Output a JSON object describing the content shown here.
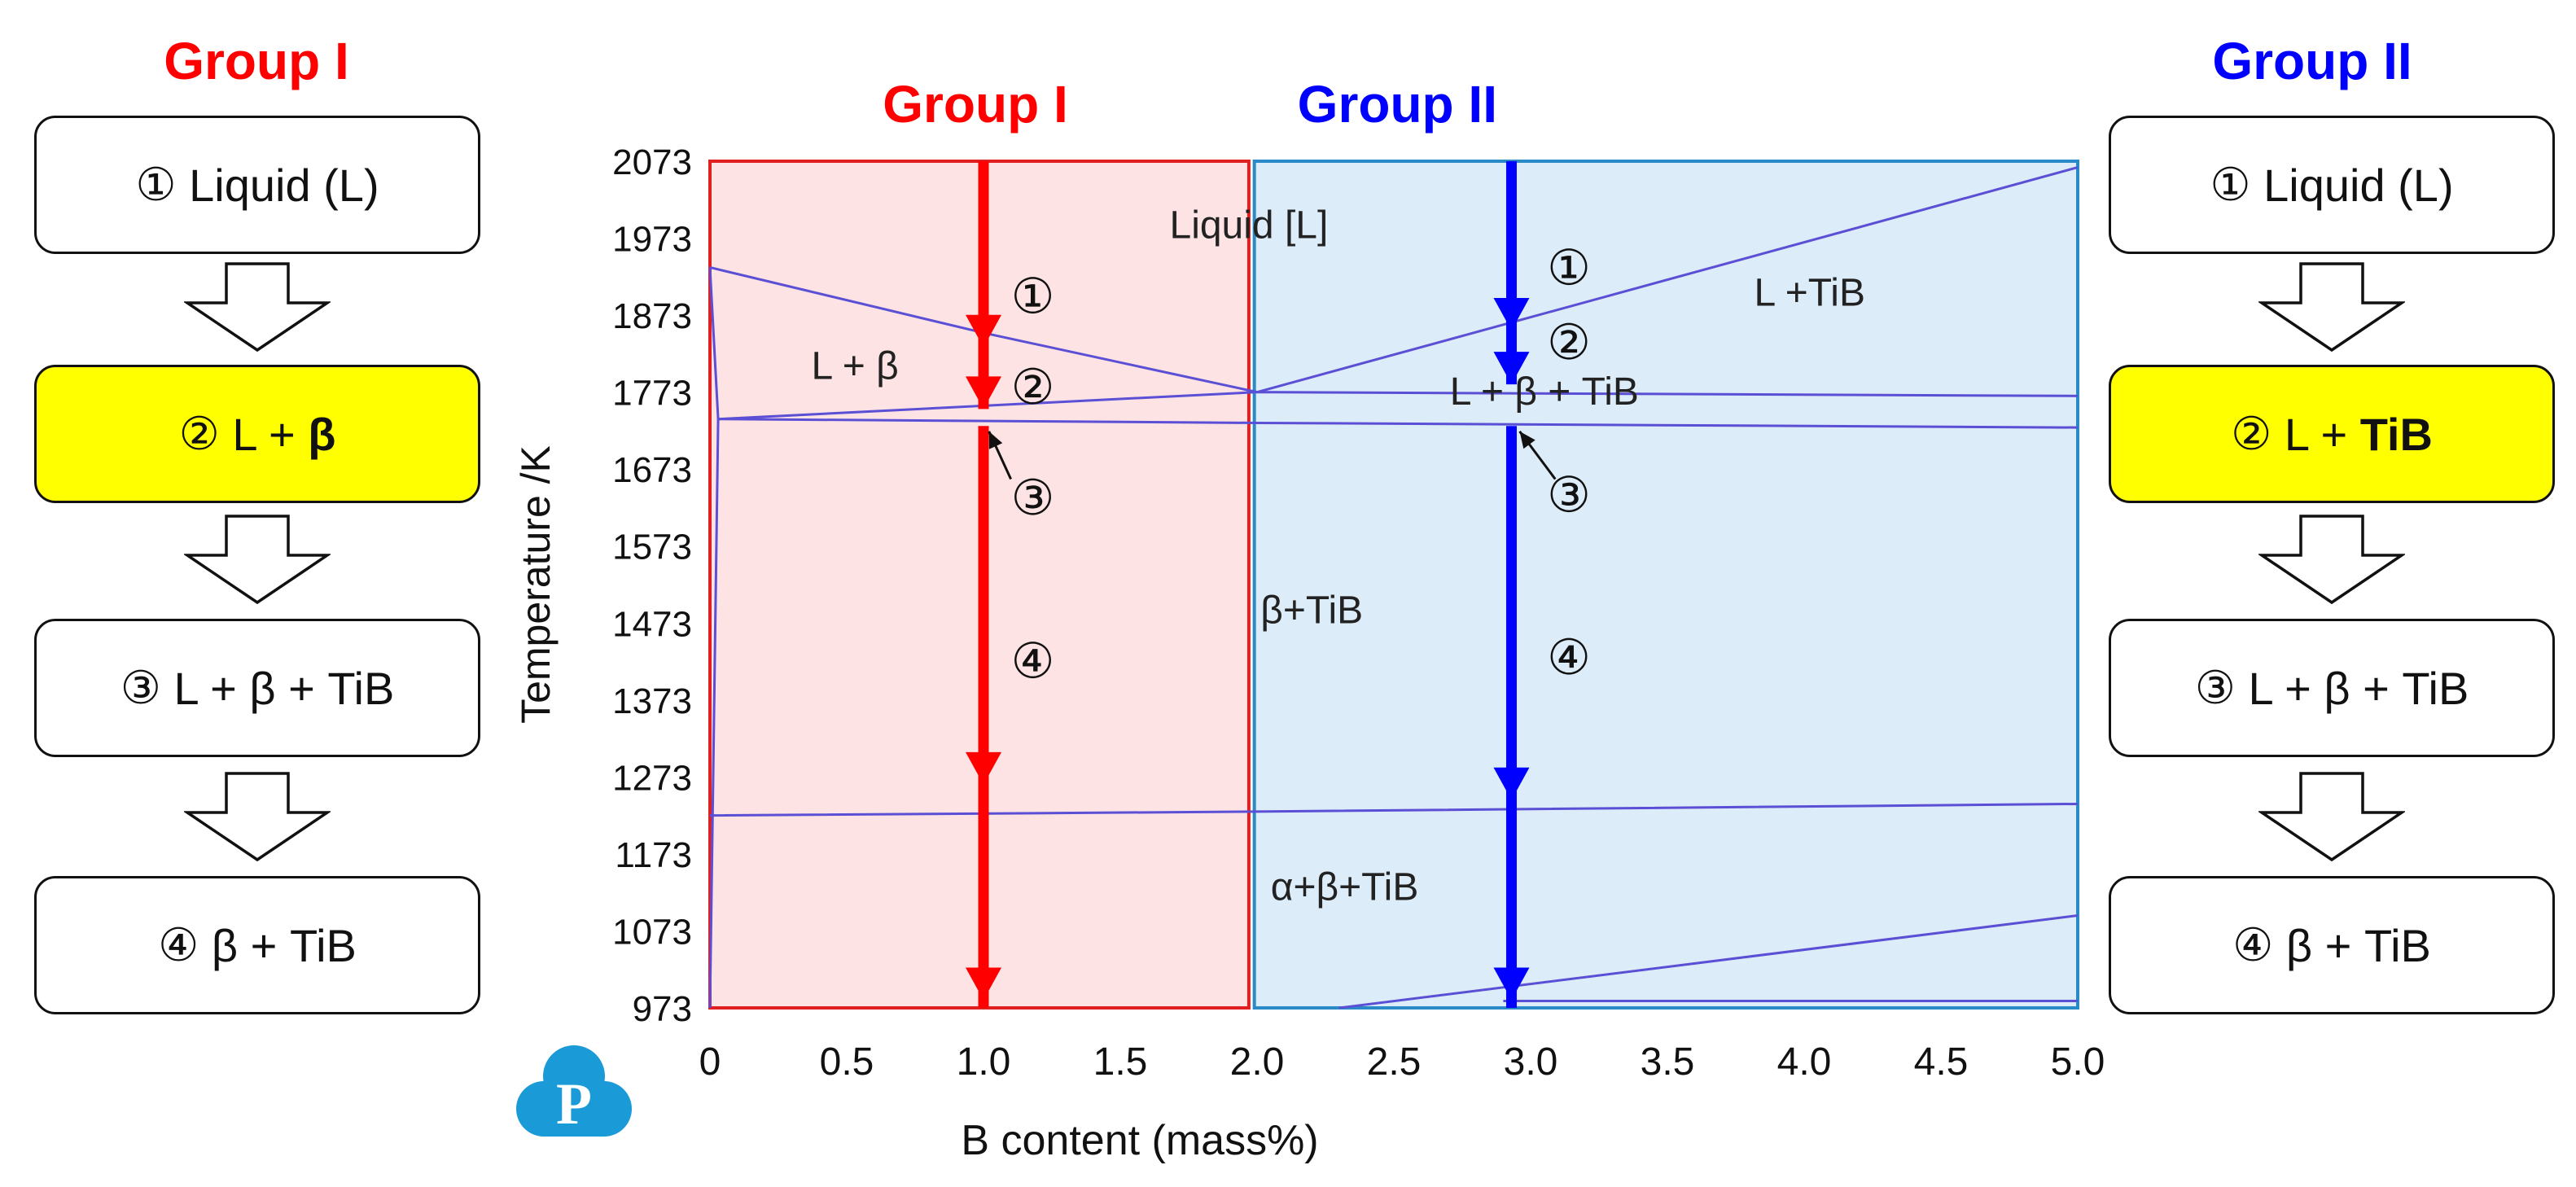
{
  "left_panel": {
    "title": "Group I",
    "title_color": "#ff0000",
    "steps": [
      {
        "marker": "①",
        "text": "Liquid (L)",
        "bold": "",
        "highlight": false
      },
      {
        "marker": "②",
        "text": "L + ",
        "bold": "β",
        "highlight": true
      },
      {
        "marker": "③",
        "text": "L + β + TiB",
        "bold": "",
        "highlight": false
      },
      {
        "marker": "④",
        "text": "β + TiB",
        "bold": "",
        "highlight": false
      }
    ]
  },
  "right_panel": {
    "title": "Group II",
    "title_color": "#0000ff",
    "steps": [
      {
        "marker": "①",
        "text": "Liquid (L)",
        "bold": "",
        "highlight": false
      },
      {
        "marker": "②",
        "text": "L + ",
        "bold": "TiB",
        "highlight": true
      },
      {
        "marker": "③",
        "text": "L + β + TiB",
        "bold": "",
        "highlight": false
      },
      {
        "marker": "④",
        "text": "β + TiB",
        "bold": "",
        "highlight": false
      }
    ]
  },
  "chart_data": {
    "type": "phase-diagram",
    "xlabel": "B content (mass%)",
    "ylabel": "Temperature /K",
    "xlim": [
      0,
      5.0
    ],
    "ylim": [
      973,
      2073
    ],
    "x_ticks": [
      "0",
      "0.5",
      "1.0",
      "1.5",
      "2.0",
      "2.5",
      "3.0",
      "3.5",
      "4.0",
      "4.5",
      "5.0"
    ],
    "y_ticks": [
      "2073",
      "1973",
      "1873",
      "1773",
      "1673",
      "1573",
      "1473",
      "1373",
      "1273",
      "1173",
      "1073",
      "973"
    ],
    "regions": [
      {
        "name": "Group I",
        "x_range": [
          0,
          1.97
        ],
        "fill": "#fde3e3",
        "border": "#e02020",
        "title_color": "#ff0000"
      },
      {
        "name": "Group II",
        "x_range": [
          1.99,
          5.0
        ],
        "fill": "#dcecf8",
        "border": "#2a8ac8",
        "title_color": "#0000ff"
      }
    ],
    "phase_lines": [
      {
        "points": [
          [
            0,
            1935
          ],
          [
            1.0,
            1850
          ],
          [
            2.0,
            1773
          ]
        ]
      },
      {
        "points": [
          [
            2.0,
            1773
          ],
          [
            5.0,
            2065
          ]
        ]
      },
      {
        "points": [
          [
            0,
            1935
          ],
          [
            0.03,
            1738
          ],
          [
            2.0,
            1773
          ],
          [
            5.0,
            1768
          ]
        ]
      },
      {
        "points": [
          [
            0.03,
            1738
          ],
          [
            2.0,
            1733
          ],
          [
            5.0,
            1727
          ]
        ]
      },
      {
        "points": [
          [
            0,
            973
          ],
          [
            0.03,
            1738
          ]
        ]
      },
      {
        "points": [
          [
            0,
            1223
          ],
          [
            2.0,
            1228
          ],
          [
            5.0,
            1238
          ]
        ]
      },
      {
        "points": [
          [
            2.3,
            973
          ],
          [
            5.0,
            1093
          ]
        ]
      },
      {
        "points": [
          [
            2.9,
            982
          ],
          [
            5.0,
            982
          ]
        ]
      }
    ],
    "phase_labels": [
      {
        "text": "Liquid [L]",
        "x": 1.97,
        "y": 1973
      },
      {
        "text": "L + β",
        "x": 0.53,
        "y": 1790
      },
      {
        "text": "L +TiB",
        "x": 4.02,
        "y": 1885
      },
      {
        "text": "L + β + TiB",
        "x": 3.05,
        "y": 1757
      },
      {
        "text": "β+TiB",
        "x": 2.2,
        "y": 1473
      },
      {
        "text": "α+β+TiB",
        "x": 2.32,
        "y": 1113
      }
    ],
    "cooling_paths": [
      {
        "name": "Group I",
        "x": 1.0,
        "color": "#ff0000",
        "y_top": 2073,
        "y_bottom": 973,
        "arrowheads": [
          1831,
          1751,
          1263,
          983
        ],
        "gap": [
          1751,
          1729
        ]
      },
      {
        "name": "Group II",
        "x": 2.93,
        "color": "#0000ff",
        "y_top": 2073,
        "y_bottom": 973,
        "arrowheads": [
          1853,
          1783,
          1243,
          983
        ],
        "gap": [
          1783,
          1729
        ]
      }
    ],
    "step_markers": [
      {
        "text": "①",
        "x": 1.18,
        "y": 1897
      },
      {
        "text": "②",
        "x": 1.18,
        "y": 1779
      },
      {
        "text": "③",
        "x": 1.18,
        "y": 1635
      },
      {
        "text": "④",
        "x": 1.18,
        "y": 1423
      },
      {
        "text": "①",
        "x": 3.14,
        "y": 1934
      },
      {
        "text": "②",
        "x": 3.14,
        "y": 1837
      },
      {
        "text": "③",
        "x": 3.14,
        "y": 1639
      },
      {
        "text": "④",
        "x": 3.14,
        "y": 1428
      }
    ],
    "pointers": [
      {
        "from": [
          1.1,
          1660
        ],
        "to": [
          1.02,
          1722
        ]
      },
      {
        "from": [
          3.09,
          1660
        ],
        "to": [
          2.96,
          1722
        ]
      }
    ]
  }
}
